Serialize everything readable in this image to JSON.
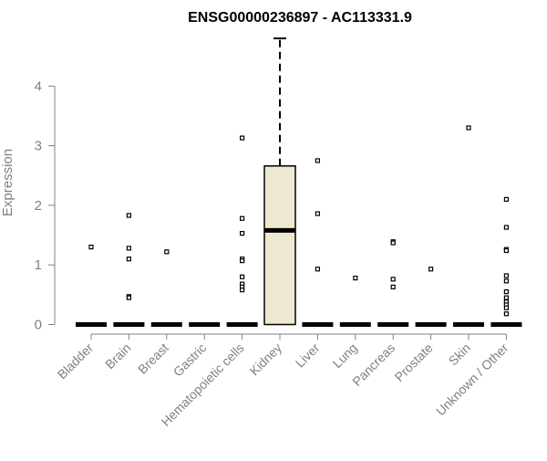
{
  "chart_data": {
    "type": "box",
    "title": "ENSG00000236897 - AC113331.9",
    "ylabel": "Expression",
    "xlabel": "",
    "ylim": [
      0,
      4.8
    ],
    "yticks": [
      0,
      1,
      2,
      3,
      4
    ],
    "grid": false,
    "colors": {
      "box_fill": "#EEE8D0",
      "stroke": "#000000",
      "axis_text": "#808080"
    },
    "categories": [
      "Bladder",
      "Brain",
      "Breast",
      "Gastric",
      "Hematopoietic cells",
      "Kidney",
      "Liver",
      "Lung",
      "Pancreas",
      "Prostate",
      "Skin",
      "Unknown / Other"
    ],
    "boxes": [
      {
        "category": "Bladder",
        "min": 0,
        "q1": 0,
        "median": 0,
        "q3": 0,
        "max": 0,
        "outliers": [
          1.3
        ]
      },
      {
        "category": "Brain",
        "min": 0,
        "q1": 0,
        "median": 0,
        "q3": 0,
        "max": 0,
        "outliers": [
          1.83,
          1.28,
          1.1,
          0.47,
          0.45
        ]
      },
      {
        "category": "Breast",
        "min": 0,
        "q1": 0,
        "median": 0,
        "q3": 0,
        "max": 0,
        "outliers": [
          1.22
        ]
      },
      {
        "category": "Gastric",
        "min": 0,
        "q1": 0,
        "median": 0,
        "q3": 0,
        "max": 0,
        "outliers": []
      },
      {
        "category": "Hematopoietic cells",
        "min": 0,
        "q1": 0,
        "median": 0,
        "q3": 0,
        "max": 0,
        "outliers": [
          3.13,
          1.78,
          1.53,
          1.1,
          1.07,
          0.8,
          0.68,
          0.63,
          0.58
        ]
      },
      {
        "category": "Kidney",
        "min": 0,
        "q1": 0,
        "median": 1.58,
        "q3": 2.66,
        "max": 4.8,
        "outliers": []
      },
      {
        "category": "Liver",
        "min": 0,
        "q1": 0,
        "median": 0,
        "q3": 0,
        "max": 0,
        "outliers": [
          2.75,
          1.86,
          0.93
        ]
      },
      {
        "category": "Lung",
        "min": 0,
        "q1": 0,
        "median": 0,
        "q3": 0,
        "max": 0,
        "outliers": [
          0.78
        ]
      },
      {
        "category": "Pancreas",
        "min": 0,
        "q1": 0,
        "median": 0,
        "q3": 0,
        "max": 0,
        "outliers": [
          1.39,
          1.37,
          0.76,
          0.63
        ]
      },
      {
        "category": "Prostate",
        "min": 0,
        "q1": 0,
        "median": 0,
        "q3": 0,
        "max": 0,
        "outliers": [
          0.93
        ]
      },
      {
        "category": "Skin",
        "min": 0,
        "q1": 0,
        "median": 0,
        "q3": 0,
        "max": 0,
        "outliers": [
          3.3
        ]
      },
      {
        "category": "Unknown / Other",
        "min": 0,
        "q1": 0,
        "median": 0,
        "q3": 0,
        "max": 0,
        "outliers": [
          2.1,
          1.63,
          1.26,
          1.24,
          0.82,
          0.73,
          0.55,
          0.45,
          0.38,
          0.33,
          0.28,
          0.18
        ]
      }
    ]
  }
}
